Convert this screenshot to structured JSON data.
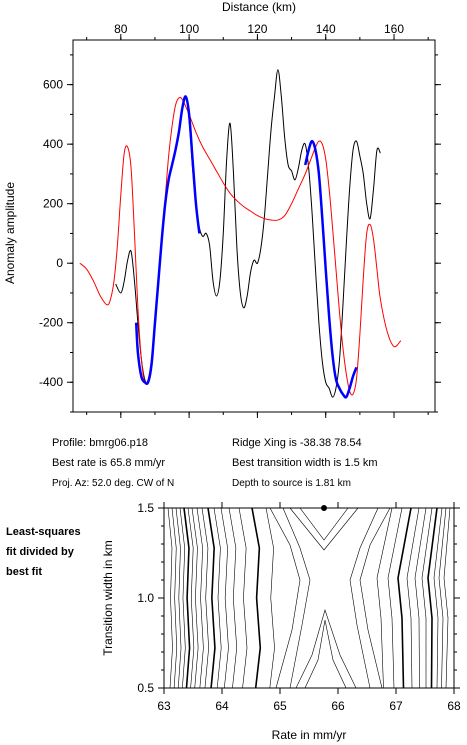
{
  "chart_data": [
    {
      "type": "line",
      "title": "",
      "xlabel": "Distance (km)",
      "ylabel": "Anomaly amplitude",
      "xlim": [
        66,
        172
      ],
      "ylim": [
        -500,
        750
      ],
      "x_ticks": [
        80,
        100,
        120,
        140,
        160
      ],
      "y_ticks": [
        -400,
        -200,
        0,
        200,
        400,
        600
      ],
      "series": [
        {
          "color": "#000000",
          "x": [
            78.5,
            80,
            81,
            82,
            83,
            84,
            85,
            86,
            87,
            88,
            89,
            90,
            91,
            92,
            93,
            94,
            95,
            96,
            97,
            98,
            99,
            100,
            101,
            102,
            103,
            104,
            105,
            106,
            107,
            108,
            109,
            110,
            111,
            112,
            113,
            114,
            115,
            116,
            117,
            118,
            119,
            120,
            121,
            122,
            123,
            124,
            125,
            126,
            127,
            128,
            129,
            130,
            131,
            132,
            133,
            134,
            135,
            136,
            137,
            138,
            139,
            140,
            141,
            142,
            143,
            144,
            145,
            146,
            147,
            148,
            149,
            150,
            151,
            152,
            153,
            154,
            155,
            156
          ],
          "y": [
            -70,
            -100,
            -60,
            10,
            40,
            -60,
            -200,
            -320,
            -390,
            -400,
            -340,
            -200,
            -60,
            80,
            200,
            280,
            330,
            380,
            440,
            520,
            560,
            480,
            320,
            200,
            120,
            90,
            100,
            60,
            -60,
            -110,
            -60,
            100,
            350,
            470,
            300,
            50,
            -100,
            -150,
            -110,
            -30,
            10,
            0,
            50,
            150,
            300,
            450,
            560,
            650,
            560,
            420,
            330,
            310,
            280,
            320,
            380,
            400,
            320,
            170,
            -20,
            -200,
            -330,
            -400,
            -420,
            -450,
            -420,
            -330,
            -150,
            60,
            250,
            380,
            410,
            360,
            300,
            200,
            150,
            250,
            380,
            370
          ]
        },
        {
          "color": "#ff0000",
          "x": [
            68,
            70,
            72,
            74,
            76,
            77,
            78,
            79,
            80,
            81,
            82,
            83,
            84,
            85,
            86,
            87,
            88,
            89,
            90,
            91,
            92,
            93,
            94,
            95,
            96,
            97,
            98,
            100,
            102,
            104,
            106,
            108,
            110,
            112,
            114,
            116,
            118,
            120,
            122,
            124,
            126,
            128,
            130,
            132,
            134,
            136,
            137,
            138,
            139,
            140,
            141,
            142,
            143,
            144,
            145,
            146,
            147,
            148,
            149,
            150,
            151,
            152,
            153,
            154,
            155,
            156,
            158,
            160,
            162
          ],
          "y": [
            0,
            -20,
            -60,
            -110,
            -140,
            -120,
            -60,
            60,
            230,
            370,
            390,
            320,
            100,
            -150,
            -320,
            -400,
            -390,
            -320,
            -200,
            -60,
            80,
            220,
            360,
            460,
            530,
            555,
            550,
            500,
            440,
            390,
            350,
            310,
            270,
            235,
            210,
            190,
            175,
            160,
            150,
            145,
            145,
            160,
            200,
            250,
            300,
            360,
            390,
            410,
            400,
            350,
            250,
            120,
            -20,
            -160,
            -280,
            -370,
            -430,
            -440,
            -390,
            -240,
            -50,
            100,
            130,
            80,
            -20,
            -120,
            -230,
            -280,
            -260
          ]
        },
        {
          "color": "#0000ff",
          "x": [
            84.5,
            85,
            86,
            87,
            88,
            89,
            90,
            91,
            92,
            93,
            94,
            95,
            96,
            97,
            98,
            99,
            100,
            101,
            102,
            103
          ],
          "y": [
            -200,
            -300,
            -380,
            -400,
            -400,
            -340,
            -200,
            -60,
            80,
            200,
            280,
            330,
            380,
            440,
            520,
            560,
            500,
            350,
            200,
            100
          ]
        },
        {
          "color": "#0000ff",
          "x": [
            134,
            135,
            136,
            137,
            138,
            139,
            140,
            141,
            142,
            143,
            144,
            145,
            146,
            147,
            148,
            149
          ],
          "y": [
            330,
            380,
            410,
            380,
            300,
            150,
            -20,
            -180,
            -310,
            -390,
            -420,
            -440,
            -450,
            -420,
            -380,
            -350
          ]
        }
      ]
    },
    {
      "type": "contour",
      "xlabel": "Rate in mm/yr",
      "ylabel": "Transition width in km",
      "xlim": [
        63,
        68
      ],
      "ylim": [
        0.5,
        1.5
      ],
      "x_ticks": [
        "63",
        "64",
        "65",
        "66",
        "67",
        "68"
      ],
      "y_ticks": [
        "0.5",
        "1.0",
        "1.5"
      ],
      "best_fit": {
        "x": 65.8,
        "y": 1.5
      }
    }
  ],
  "info": {
    "profile": "Profile: bmrg06.p18",
    "rate": "Best rate is 65.8 mm/yr",
    "proj": "Proj. Az: 52.0 deg. CW of N",
    "ridge": "Ridge Xing is -38.38 78.54",
    "width": "Best transition width is 1.5 km",
    "depth": "Depth to source is   1.81 km"
  },
  "side_label": {
    "line1": "Least-squares",
    "line2": "fit divided by",
    "line3": "best fit"
  }
}
